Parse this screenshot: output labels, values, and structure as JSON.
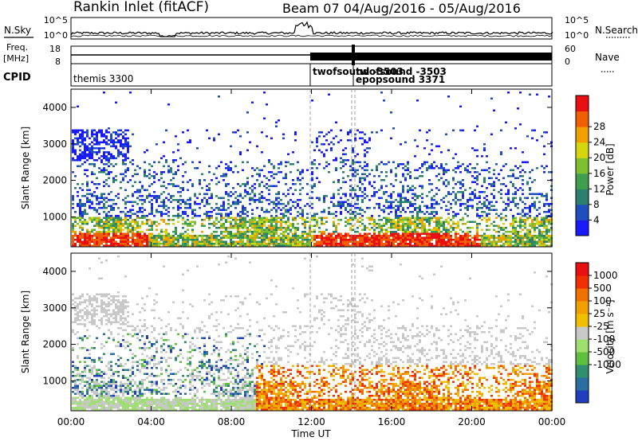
{
  "header": {
    "title": "Rankin Inlet (fitACF)",
    "beam_info": "Beam 07  04/Aug/2016 - 05/Aug/2016"
  },
  "indicator_panels": {
    "nsky": {
      "label": "N.Sky",
      "ticks": [
        "10^5",
        "10^0"
      ]
    },
    "nsearch": {
      "label": "N.Search",
      "ticks": [
        "10^5",
        "10^0"
      ]
    },
    "freq": {
      "label_line1": "Freq.",
      "label_line2": "[MHz]",
      "ticks": [
        "18",
        "8"
      ]
    },
    "nave": {
      "label": "Nave",
      "ticks": [
        "60",
        "0"
      ]
    },
    "cpid": {
      "label": "CPID",
      "entries": [
        "themis 3300",
        "twofsound -3503",
        "twofsound -3503",
        "epopsound 3371"
      ]
    }
  },
  "chart_data": [
    {
      "type": "heatmap",
      "title": "",
      "ylabel": "Slant Range [km]",
      "xlabel": "",
      "ylim": [
        180,
        4500
      ],
      "yticks": [
        "1000",
        "2000",
        "3000",
        "4000"
      ],
      "colorbar": {
        "label": "Power [dB]",
        "range": [
          0,
          32
        ],
        "ticks": [
          "4",
          "8",
          "12",
          "16",
          "20",
          "24",
          "28"
        ],
        "colors": [
          "#1a1aff",
          "#1f4fbf",
          "#2a7f6f",
          "#3f9f4f",
          "#7fbf2f",
          "#d6d60f",
          "#f0a000",
          "#f06000",
          "#e81010"
        ]
      }
    },
    {
      "type": "heatmap",
      "title": "",
      "ylabel": "Slant Range [km]",
      "xlabel": "Time UT",
      "ylim": [
        180,
        4500
      ],
      "yticks": [
        "1000",
        "2000",
        "3000",
        "4000"
      ],
      "xticks": [
        "00:00",
        "04:00",
        "08:00",
        "12:00",
        "16:00",
        "20:00",
        "00:00"
      ],
      "colorbar": {
        "label": "Velocity [m s⁻¹]",
        "range": [
          -1200,
          1200
        ],
        "ticks": [
          "1000",
          "500",
          "100",
          "25",
          "-25",
          "-100",
          "-500",
          "-1000"
        ],
        "colors": [
          "#1f3fbf",
          "#2a6fa0",
          "#2f8f6f",
          "#5fbf3f",
          "#9fdf6f",
          "#c8c8c8",
          "#f0c000",
          "#f0a000",
          "#f07000",
          "#f03000",
          "#e81010"
        ]
      }
    }
  ]
}
